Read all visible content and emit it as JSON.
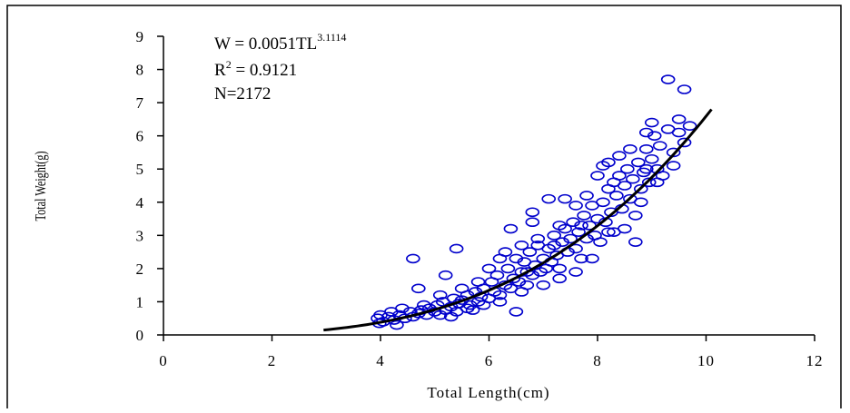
{
  "chart_data": {
    "type": "scatter",
    "xlabel": "Total Length(cm)",
    "ylabel": "Total Weight(g)",
    "xlim": [
      0,
      12
    ],
    "ylim": [
      0,
      9
    ],
    "xticks": [
      "0",
      "2",
      "4",
      "6",
      "8",
      "10",
      "12"
    ],
    "yticks": [
      "0",
      "1",
      "2",
      "3",
      "4",
      "5",
      "6",
      "7",
      "8",
      "9"
    ],
    "grid": false,
    "marker": "hollow-circle",
    "marker_color": "#0000cc",
    "curve_color": "#000000",
    "annotations": {
      "equation_prefix": "W = 0.0051TL",
      "equation_exponent": "3.1114",
      "r2_prefix": "R",
      "r2_sup": "2",
      "r2_suffix": " = 0.9121",
      "n": "N=2172"
    },
    "fit": {
      "a": 0.0051,
      "b": 3.1114,
      "x_range": [
        2.95,
        10.1
      ]
    },
    "points": [
      [
        3.95,
        0.5
      ],
      [
        4.05,
        0.4
      ],
      [
        4.15,
        0.55
      ],
      [
        4.25,
        0.45
      ],
      [
        4.35,
        0.6
      ],
      [
        4.45,
        0.5
      ],
      [
        4.55,
        0.7
      ],
      [
        4.6,
        0.55
      ],
      [
        4.7,
        0.65
      ],
      [
        4.75,
        0.75
      ],
      [
        4.85,
        0.6
      ],
      [
        4.9,
        0.8
      ],
      [
        5.0,
        0.7
      ],
      [
        5.05,
        0.9
      ],
      [
        5.1,
        0.6
      ],
      [
        5.15,
        1.0
      ],
      [
        5.2,
        0.75
      ],
      [
        5.3,
        0.85
      ],
      [
        5.35,
        1.1
      ],
      [
        5.4,
        0.7
      ],
      [
        5.45,
        0.95
      ],
      [
        5.5,
        1.05
      ],
      [
        5.6,
        1.2
      ],
      [
        5.65,
        0.9
      ],
      [
        5.75,
        1.3
      ],
      [
        5.8,
        1.0
      ],
      [
        5.85,
        1.15
      ],
      [
        5.9,
        1.4
      ],
      [
        6.0,
        1.1
      ],
      [
        6.05,
        1.6
      ],
      [
        6.1,
        1.3
      ],
      [
        6.15,
        1.8
      ],
      [
        6.2,
        1.2
      ],
      [
        6.3,
        1.5
      ],
      [
        6.35,
        2.0
      ],
      [
        6.4,
        1.4
      ],
      [
        6.45,
        1.7
      ],
      [
        6.5,
        2.3
      ],
      [
        6.55,
        1.6
      ],
      [
        6.6,
        1.9
      ],
      [
        6.65,
        2.2
      ],
      [
        6.7,
        1.5
      ],
      [
        6.75,
        2.5
      ],
      [
        6.8,
        1.8
      ],
      [
        6.85,
        2.1
      ],
      [
        6.9,
        2.7
      ],
      [
        6.95,
        1.9
      ],
      [
        7.0,
        2.3
      ],
      [
        7.05,
        2.0
      ],
      [
        7.1,
        2.6
      ],
      [
        7.15,
        2.2
      ],
      [
        7.2,
        3.0
      ],
      [
        7.25,
        2.4
      ],
      [
        7.3,
        2.0
      ],
      [
        7.35,
        2.8
      ],
      [
        7.4,
        3.2
      ],
      [
        7.45,
        2.5
      ],
      [
        7.5,
        2.9
      ],
      [
        7.55,
        3.4
      ],
      [
        7.6,
        2.6
      ],
      [
        7.65,
        3.1
      ],
      [
        7.7,
        2.3
      ],
      [
        7.75,
        3.6
      ],
      [
        7.8,
        2.9
      ],
      [
        7.85,
        3.3
      ],
      [
        7.9,
        3.9
      ],
      [
        7.95,
        3.0
      ],
      [
        8.0,
        3.5
      ],
      [
        8.05,
        2.8
      ],
      [
        8.1,
        4.0
      ],
      [
        8.15,
        3.4
      ],
      [
        8.2,
        4.4
      ],
      [
        8.25,
        3.7
      ],
      [
        8.3,
        3.1
      ],
      [
        8.35,
        4.2
      ],
      [
        8.4,
        4.8
      ],
      [
        8.45,
        3.8
      ],
      [
        8.5,
        4.5
      ],
      [
        8.55,
        5.0
      ],
      [
        8.6,
        4.1
      ],
      [
        8.65,
        4.7
      ],
      [
        8.7,
        3.6
      ],
      [
        8.75,
        5.2
      ],
      [
        8.8,
        4.4
      ],
      [
        8.85,
        4.9
      ],
      [
        8.9,
        5.6
      ],
      [
        8.95,
        4.6
      ],
      [
        9.0,
        5.3
      ],
      [
        9.05,
        6.0
      ],
      [
        9.1,
        5.0
      ],
      [
        9.15,
        5.7
      ],
      [
        9.2,
        4.8
      ],
      [
        9.3,
        6.2
      ],
      [
        9.4,
        5.5
      ],
      [
        9.5,
        6.1
      ],
      [
        9.6,
        5.8
      ],
      [
        9.7,
        6.3
      ],
      [
        8.2,
        5.2
      ],
      [
        8.4,
        5.4
      ],
      [
        8.7,
        2.8
      ],
      [
        9.0,
        6.4
      ],
      [
        9.3,
        7.7
      ],
      [
        9.6,
        7.4
      ],
      [
        4.6,
        2.3
      ],
      [
        5.2,
        1.8
      ],
      [
        5.4,
        2.6
      ],
      [
        6.5,
        0.7
      ],
      [
        6.4,
        3.2
      ],
      [
        6.8,
        3.4
      ],
      [
        6.8,
        3.7
      ],
      [
        7.1,
        4.1
      ],
      [
        7.4,
        4.1
      ],
      [
        4.7,
        1.4
      ],
      [
        5.9,
        0.9
      ],
      [
        5.6,
        0.8
      ],
      [
        6.0,
        2.0
      ],
      [
        6.3,
        2.5
      ],
      [
        7.8,
        4.2
      ],
      [
        8.1,
        5.1
      ],
      [
        8.3,
        4.6
      ],
      [
        8.6,
        5.6
      ],
      [
        8.9,
        6.1
      ],
      [
        7.6,
        3.9
      ],
      [
        7.3,
        3.3
      ],
      [
        6.9,
        2.9
      ],
      [
        6.6,
        2.7
      ],
      [
        6.2,
        2.3
      ],
      [
        5.8,
        1.6
      ],
      [
        5.5,
        1.4
      ],
      [
        5.1,
        1.2
      ],
      [
        4.8,
        0.9
      ],
      [
        4.4,
        0.8
      ],
      [
        4.2,
        0.7
      ],
      [
        4.0,
        0.6
      ],
      [
        3.98,
        0.35
      ],
      [
        4.3,
        0.3
      ],
      [
        7.0,
        1.5
      ],
      [
        7.3,
        1.7
      ],
      [
        7.6,
        1.9
      ],
      [
        7.9,
        2.3
      ],
      [
        8.5,
        3.2
      ],
      [
        8.8,
        4.0
      ],
      [
        9.1,
        4.6
      ],
      [
        9.4,
        5.1
      ],
      [
        6.2,
        1.0
      ],
      [
        6.6,
        1.3
      ],
      [
        5.3,
        0.55
      ],
      [
        5.7,
        0.75
      ],
      [
        6.7,
        1.9
      ],
      [
        7.2,
        2.7
      ],
      [
        7.7,
        3.3
      ],
      [
        8.0,
        4.8
      ],
      [
        8.2,
        3.1
      ],
      [
        8.9,
        5.0
      ],
      [
        9.5,
        6.5
      ]
    ]
  }
}
